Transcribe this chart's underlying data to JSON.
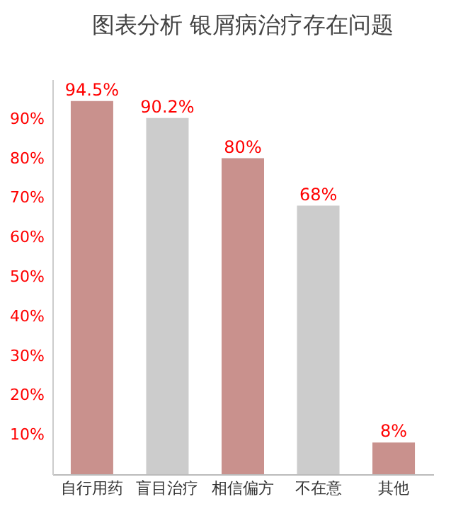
{
  "chart_data": {
    "type": "bar",
    "title": "图表分析  银屑病治疗存在问题",
    "categories": [
      "自行用药",
      "盲目治疗",
      "相信偏方",
      "不在意",
      "其他"
    ],
    "values": [
      94.5,
      90.2,
      80,
      68,
      8
    ],
    "colors": [
      "#c9918d",
      "#cccccc",
      "#c9918d",
      "#cccccc",
      "#c9918d"
    ],
    "value_labels": [
      "94.5%",
      "90.2%",
      "80%",
      "68%",
      "8%"
    ],
    "ylim": [
      0,
      100
    ],
    "yticks": [
      {
        "value": 10,
        "label": "10%"
      },
      {
        "value": 20,
        "label": "20%"
      },
      {
        "value": 30,
        "label": "30%"
      },
      {
        "value": 40,
        "label": "40%"
      },
      {
        "value": 50,
        "label": "50%"
      },
      {
        "value": 60,
        "label": "60%"
      },
      {
        "value": 70,
        "label": "70%"
      },
      {
        "value": 80,
        "label": "80%"
      },
      {
        "value": 90,
        "label": "90%"
      }
    ],
    "grid": false
  }
}
